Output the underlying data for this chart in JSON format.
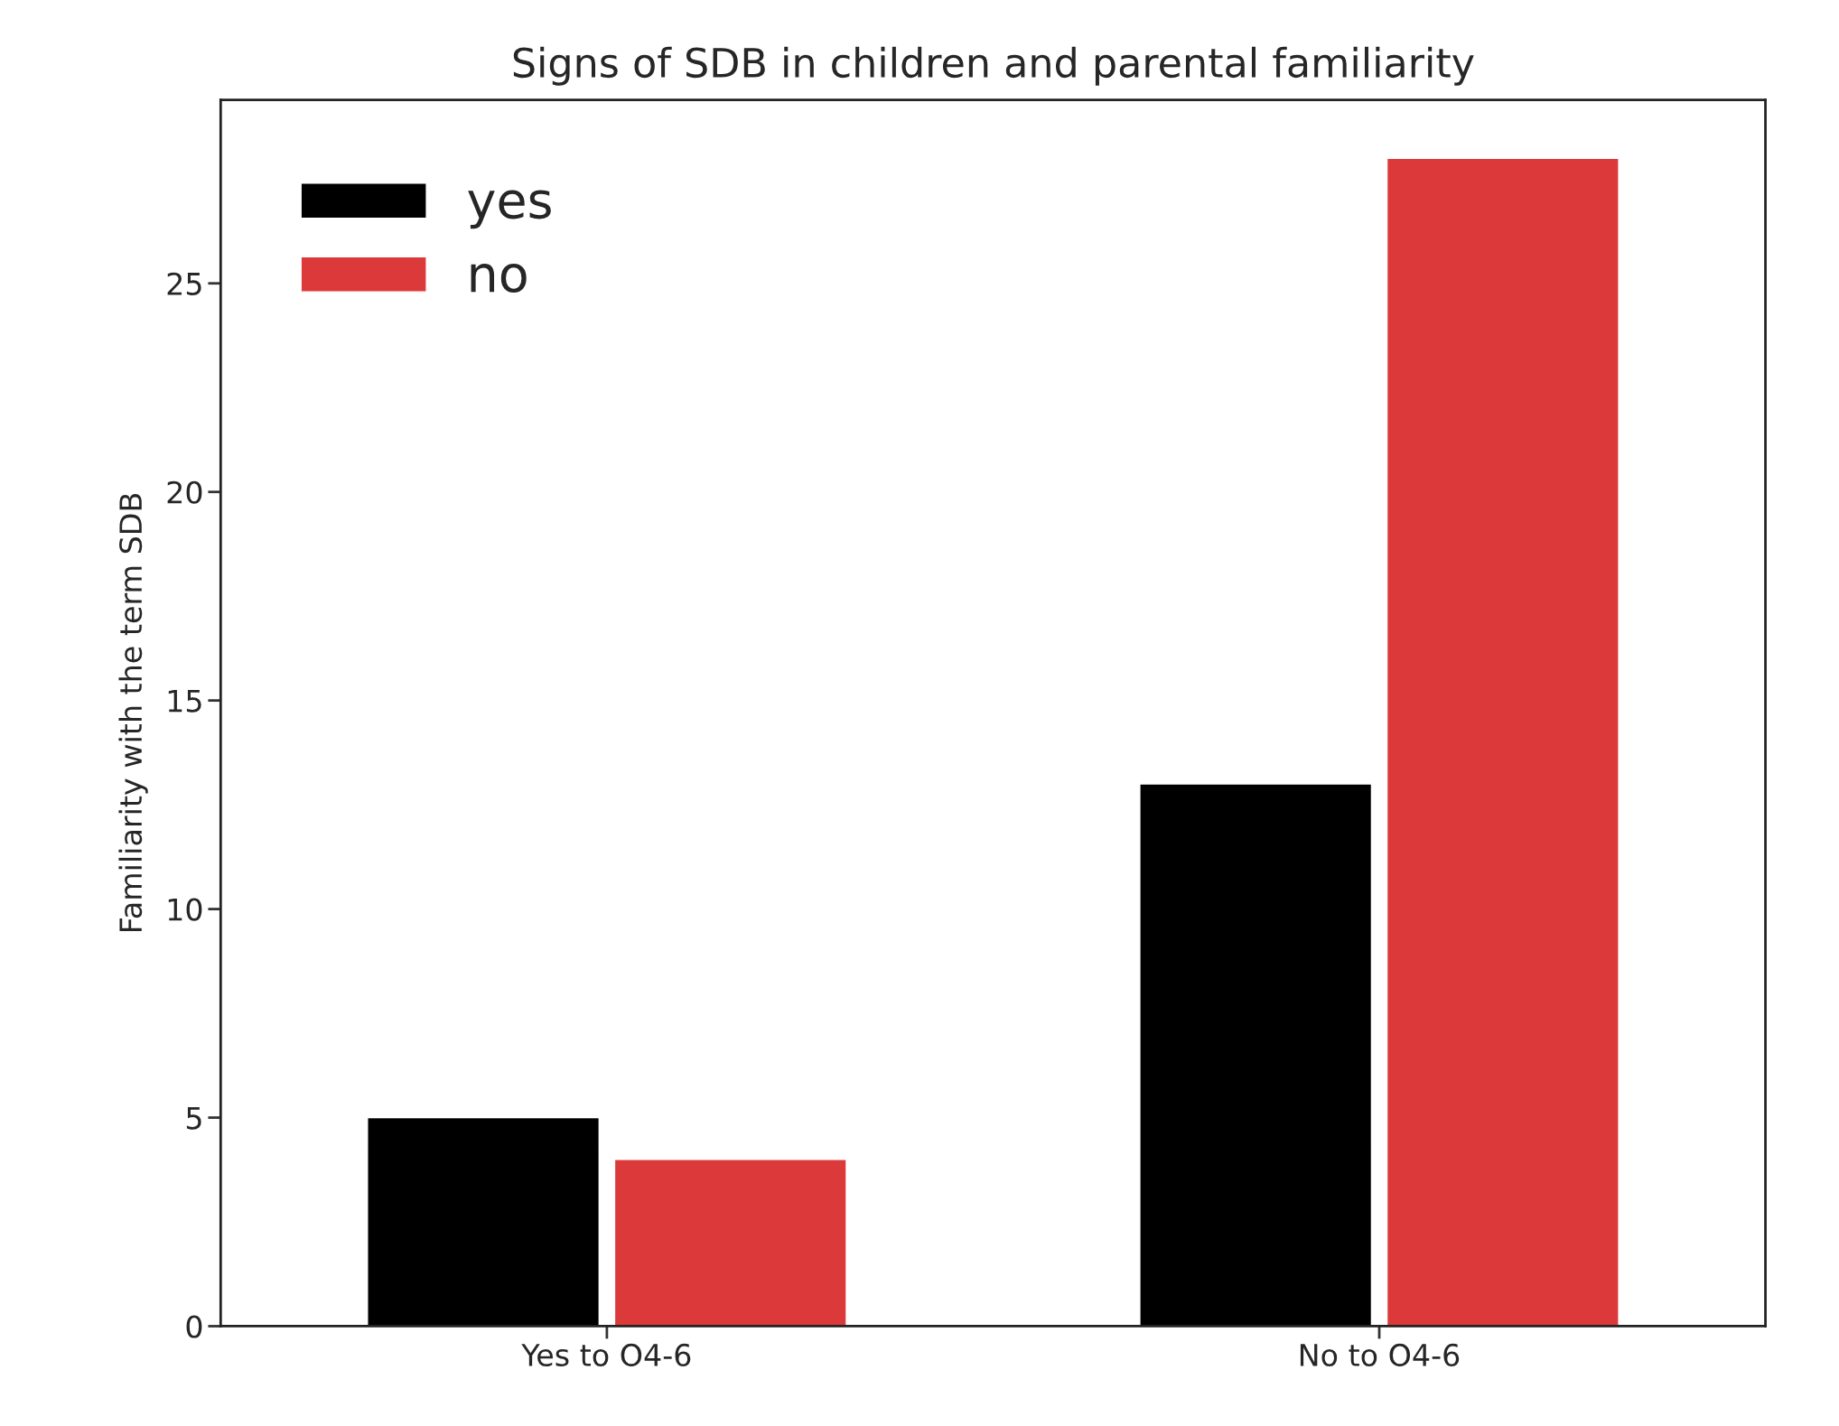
{
  "chart_data": {
    "type": "bar",
    "title": "Signs of SDB in children and parental familiarity",
    "ylabel": "Familiarity with the term SDB",
    "categories": [
      "Yes to O4-6",
      "No to O4-6"
    ],
    "series": [
      {
        "name": "yes",
        "color": "#000000",
        "values": [
          5,
          13
        ]
      },
      {
        "name": "no",
        "color": "#dc3a3a",
        "values": [
          4,
          28
        ]
      }
    ],
    "ylim": [
      0,
      29.4
    ],
    "yticks": [
      0,
      5,
      10,
      15,
      20,
      25
    ],
    "legend": "top left",
    "grid": false
  }
}
